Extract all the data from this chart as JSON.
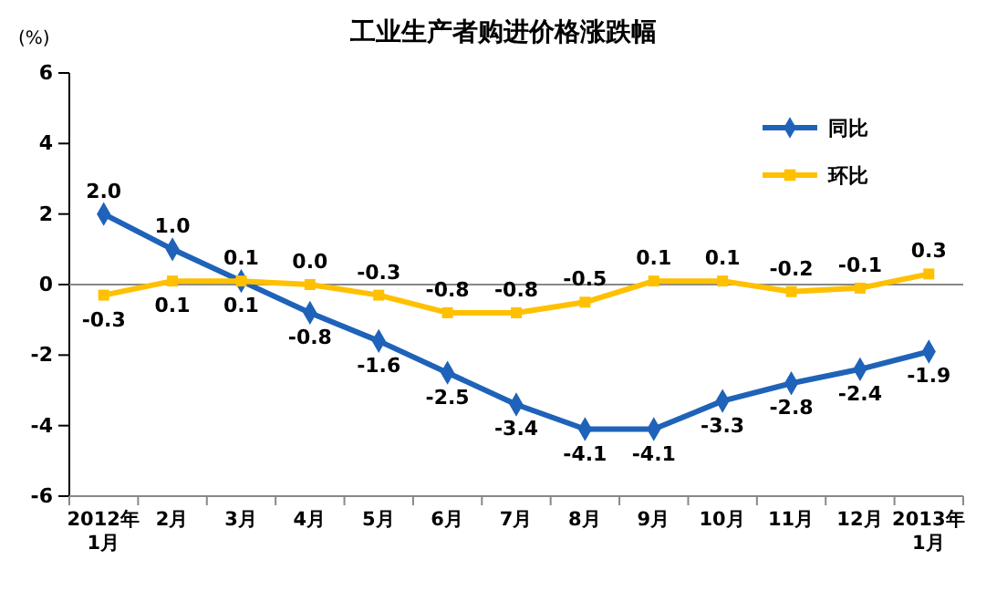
{
  "chart_data": {
    "type": "line",
    "title": "工业生产者购进价格涨跌幅",
    "ylabel": "(%)",
    "categories": [
      "2012年\n1月",
      "2月",
      "3月",
      "4月",
      "5月",
      "6月",
      "7月",
      "8月",
      "9月",
      "10月",
      "11月",
      "12月",
      "2013年\n1月"
    ],
    "series": [
      {
        "name": "同比",
        "color": "#1f62b9",
        "marker": "diamond",
        "values": [
          2.0,
          1.0,
          0.1,
          -0.8,
          -1.6,
          -2.5,
          -3.4,
          -4.1,
          -4.1,
          -3.3,
          -2.8,
          -2.4,
          -1.9
        ],
        "value_labels": [
          "2.0",
          "1.0",
          "0.1",
          "-0.8",
          "-1.6",
          "-2.5",
          "-3.4",
          "-4.1",
          "-4.1",
          "-3.3",
          "-2.8",
          "-2.4",
          "-1.9"
        ]
      },
      {
        "name": "环比",
        "color": "#ffc000",
        "marker": "square",
        "values": [
          -0.3,
          0.1,
          0.1,
          0.0,
          -0.3,
          -0.8,
          -0.8,
          -0.5,
          0.1,
          0.1,
          -0.2,
          -0.1,
          0.3
        ],
        "value_labels": [
          "-0.3",
          "0.1",
          "0.1",
          "0.0",
          "-0.3",
          "-0.8",
          "-0.8",
          "-0.5",
          "0.1",
          "0.1",
          "-0.2",
          "-0.1",
          "0.3"
        ]
      }
    ],
    "ylim": [
      -6,
      6
    ],
    "yticks": [
      -6,
      -4,
      -2,
      0,
      2,
      4,
      6
    ],
    "legend": "top right",
    "line_style": "solid"
  }
}
